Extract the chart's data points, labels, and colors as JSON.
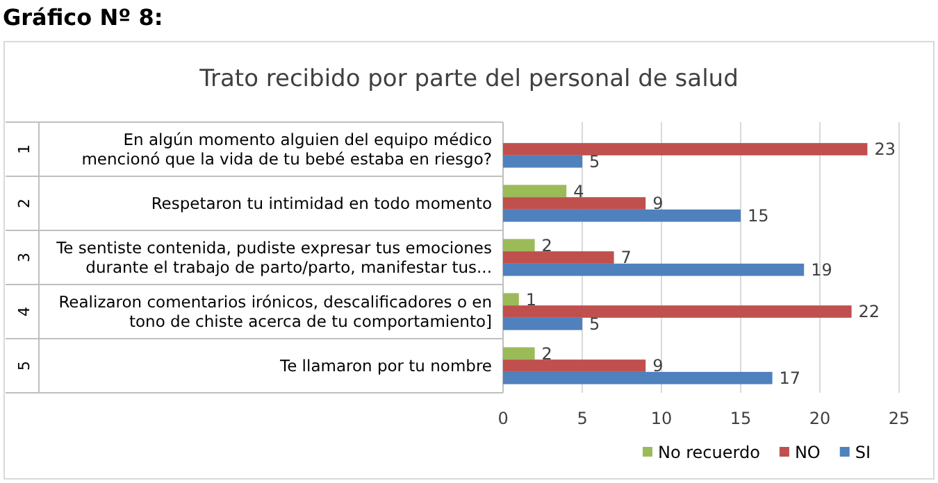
{
  "chart_data": {
    "type": "bar",
    "orientation": "horizontal",
    "title": "Trato recibido por parte del personal de salud",
    "annotations": [
      "Gráfico Nº 8:",
      "1",
      "2",
      "3",
      "4",
      "5"
    ],
    "categories": [
      "En algún momento alguien del equipo médico mencionó que la vida de tu bebé estaba en riesgo?",
      "Respetaron tu intimidad en todo momento",
      "Te sentiste contenida, pudiste expresar tus emociones durante el trabajo de parto/parto, manifestar tus...",
      "Realizaron comentarios irónicos, descalificadores o en tono de chiste acerca de tu comportamiento]",
      "Te llamaron por tu nombre"
    ],
    "series": [
      {
        "name": "No recuerdo",
        "color": "#9bbb59",
        "values": [
          null,
          4,
          2,
          1,
          2
        ]
      },
      {
        "name": "NO",
        "color": "#c0504d",
        "values": [
          23,
          9,
          7,
          22,
          9
        ]
      },
      {
        "name": "SI",
        "color": "#4f81bd",
        "values": [
          5,
          15,
          19,
          5,
          17
        ]
      }
    ],
    "xlim": [
      0,
      25
    ],
    "xticks": [
      0,
      5,
      10,
      15,
      20,
      25
    ],
    "grid": "x",
    "legend": "bottom",
    "data_labels": true
  }
}
